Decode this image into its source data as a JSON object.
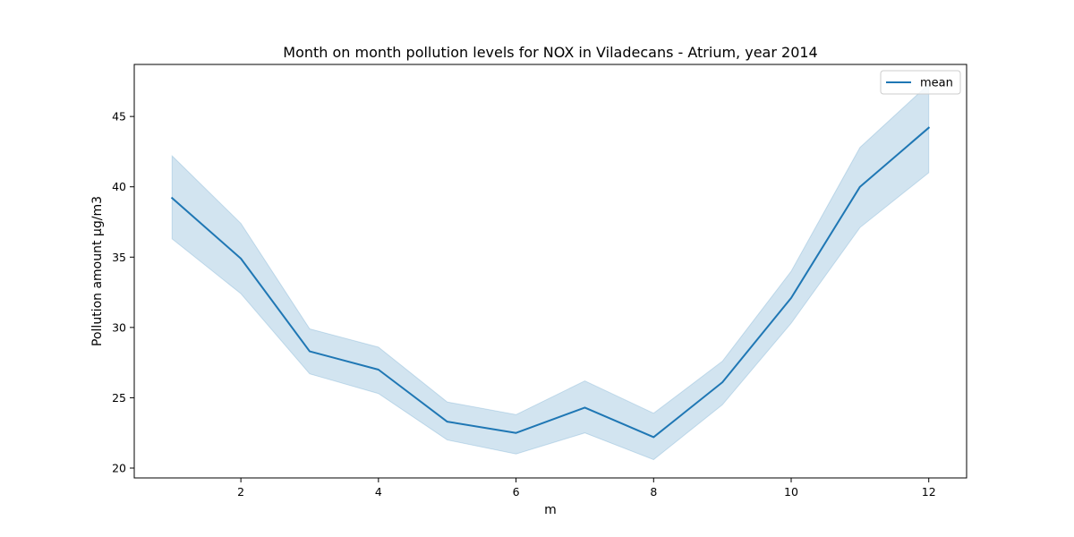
{
  "chart_data": {
    "type": "line",
    "title": "Month on month pollution levels for NOX in Viladecans - Atrium, year 2014",
    "xlabel": "m",
    "ylabel": "Pollution amount μg/m3",
    "xlim": [
      0.45,
      12.55
    ],
    "ylim": [
      19.3,
      48.7
    ],
    "xticks": [
      2,
      4,
      6,
      8,
      10,
      12
    ],
    "yticks": [
      20,
      25,
      30,
      35,
      40,
      45
    ],
    "grid": false,
    "legend_position": "top-right",
    "x": [
      1,
      2,
      3,
      4,
      5,
      6,
      7,
      8,
      9,
      10,
      11,
      12
    ],
    "series": [
      {
        "name": "mean",
        "color": "#1f77b4",
        "values": [
          39.2,
          34.9,
          28.3,
          27.0,
          23.3,
          22.5,
          24.3,
          22.2,
          26.1,
          32.1,
          40.0,
          44.2
        ],
        "ci_lower": [
          36.3,
          32.4,
          26.7,
          25.3,
          22.0,
          21.0,
          22.5,
          20.6,
          24.5,
          30.3,
          37.1,
          41.0
        ],
        "ci_upper": [
          42.2,
          37.4,
          29.9,
          28.6,
          24.7,
          23.8,
          26.2,
          23.9,
          27.6,
          34.0,
          42.8,
          47.3
        ],
        "band_color": "#1f77b4"
      }
    ]
  }
}
